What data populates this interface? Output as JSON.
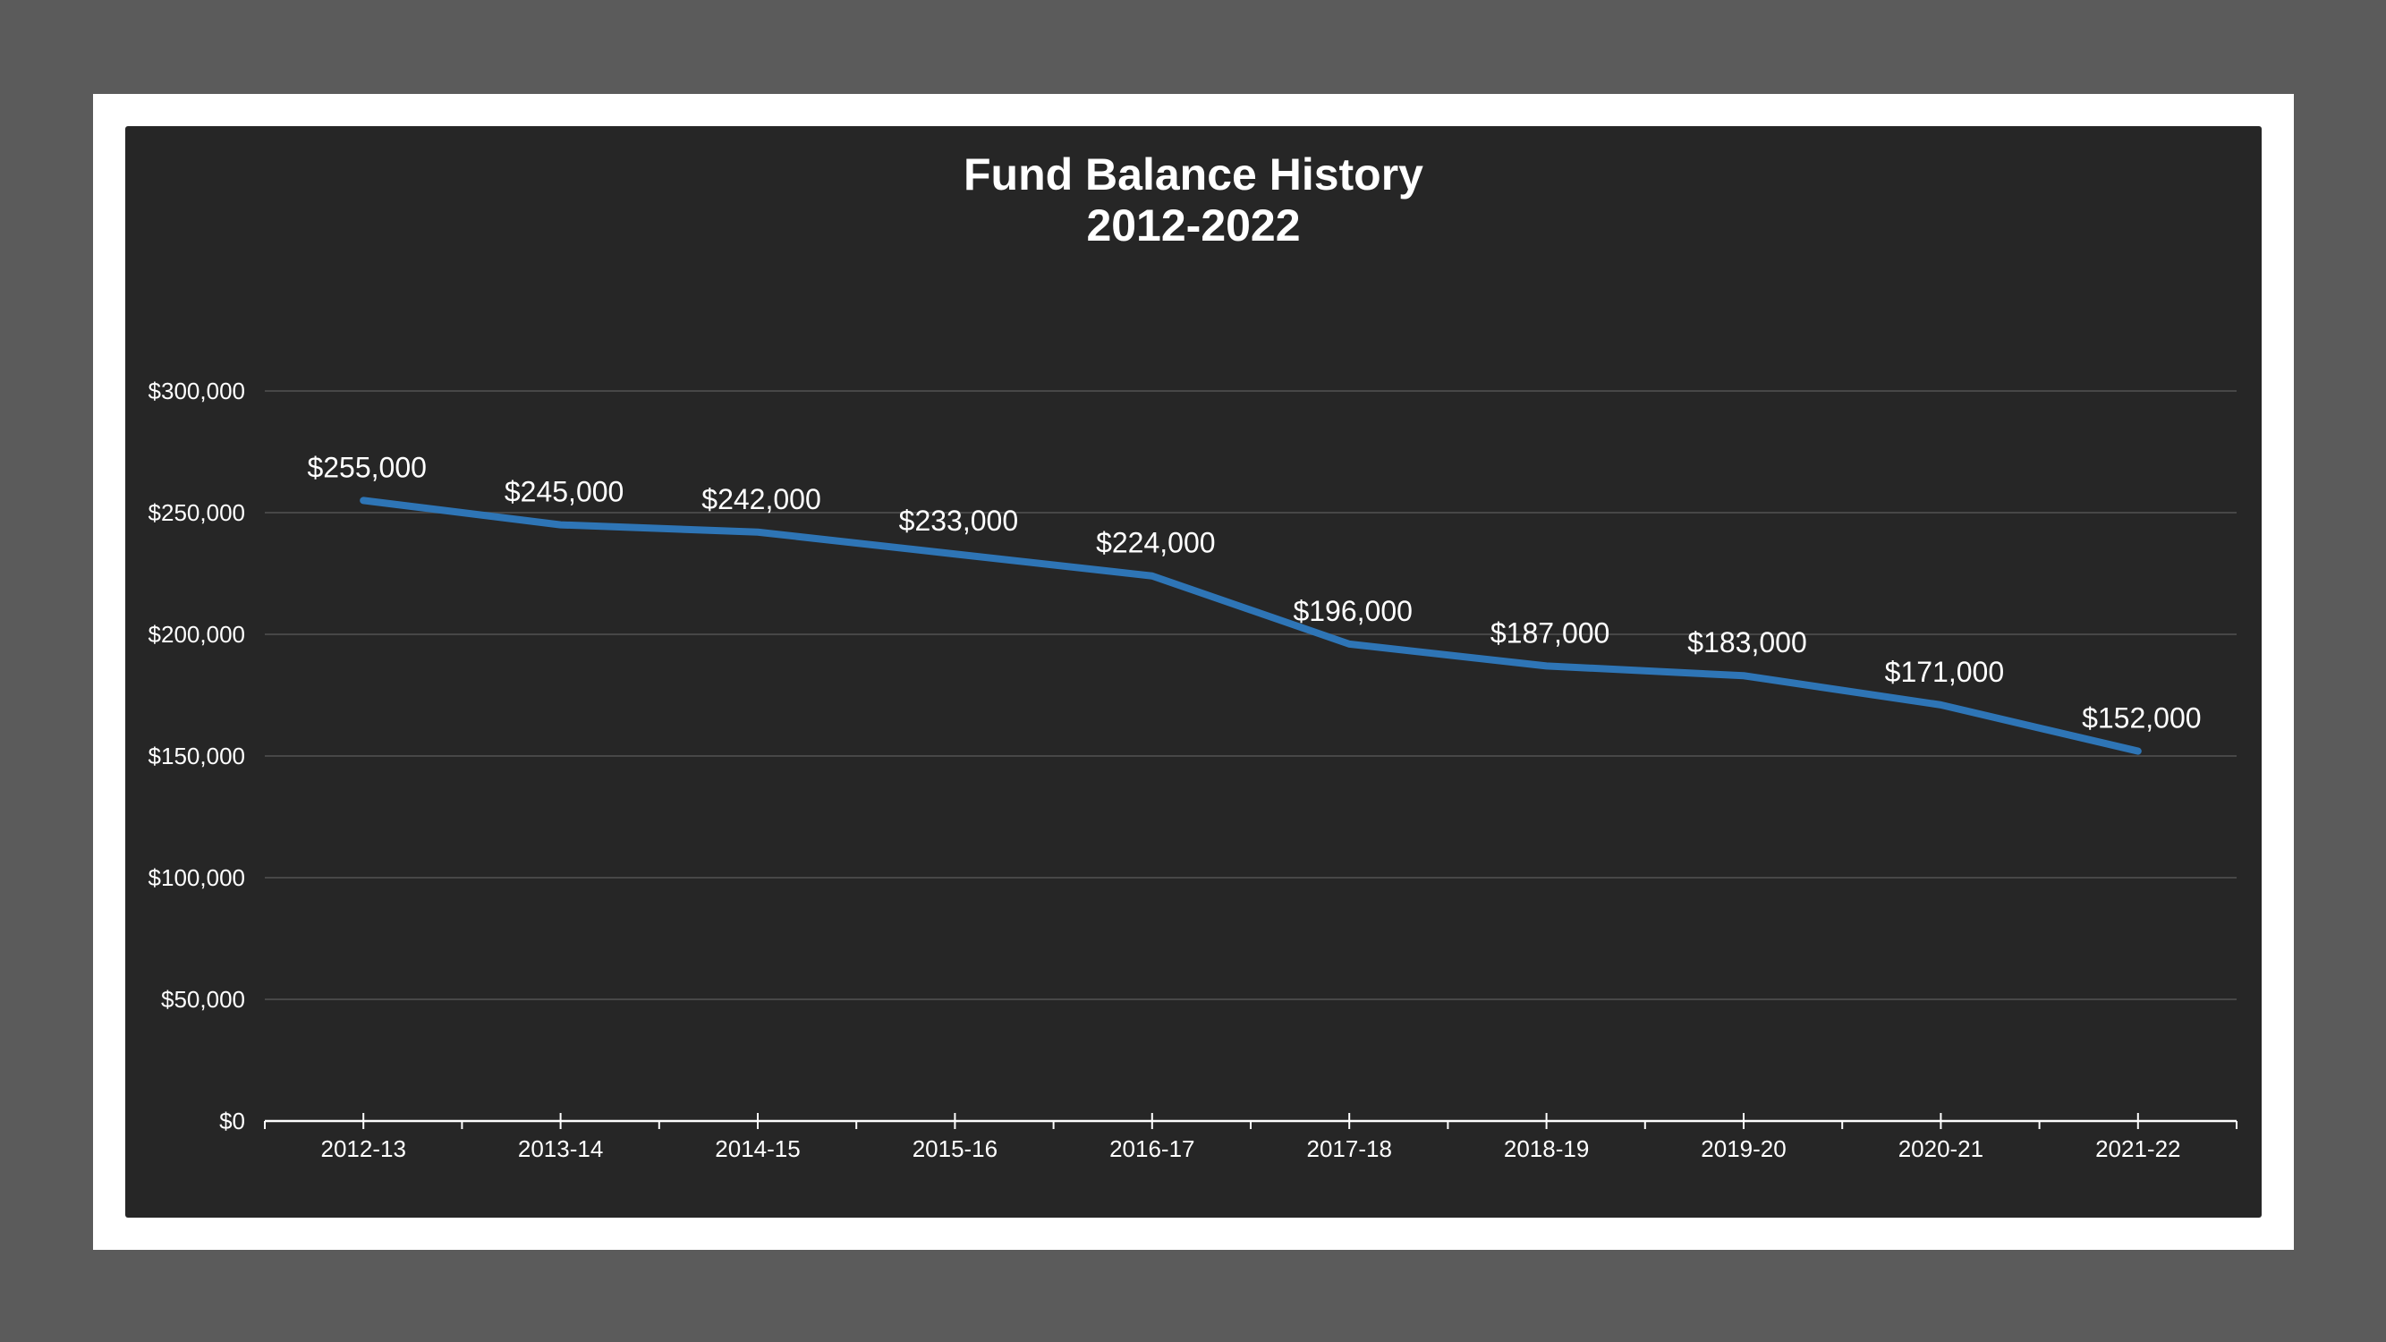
{
  "chart_data": {
    "type": "line",
    "title": "Fund Balance History",
    "subtitle": "2012-2022",
    "xlabel": "",
    "ylabel": "",
    "categories": [
      "2012-13",
      "2013-14",
      "2014-15",
      "2015-16",
      "2016-17",
      "2017-18",
      "2018-19",
      "2019-20",
      "2020-21",
      "2021-22"
    ],
    "series": [
      {
        "values": [
          255000,
          245000,
          242000,
          233000,
          224000,
          196000,
          187000,
          183000,
          171000,
          152000
        ],
        "data_labels": [
          "$255,000",
          "$245,000",
          "$242,000",
          "$233,000",
          "$224,000",
          "$196,000",
          "$187,000",
          "$183,000",
          "$171,000",
          "$152,000"
        ],
        "color": "#2e75b6"
      }
    ],
    "ylim": [
      0,
      300000
    ],
    "y_ticks": [
      0,
      50000,
      100000,
      150000,
      200000,
      250000,
      300000
    ],
    "y_tick_labels": [
      "$0",
      "$50,000",
      "$100,000",
      "$150,000",
      "$200,000",
      "$250,000",
      "$300,000"
    ],
    "grid": true,
    "legend": "none",
    "colors": {
      "background": "#262626",
      "frame": "#ffffff",
      "outer": "#5b5b5b",
      "grid": "#474747",
      "axis": "#ffffff",
      "line": "#2e75b6"
    }
  }
}
